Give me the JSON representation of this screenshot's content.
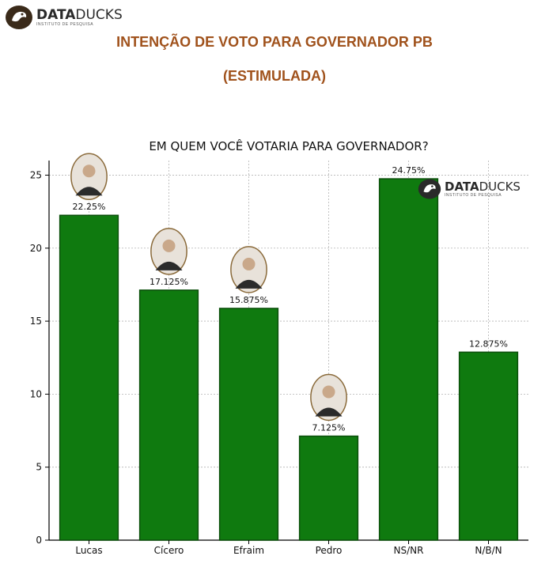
{
  "header": {
    "logo": {
      "name_bold": "DATA",
      "name_regular": "DUCKS",
      "subtitle": "INSTITUTO DE PESQUISA"
    },
    "title_line1": "INTENÇÃO DE VOTO PARA GOVERNADOR PB",
    "title_line2": "(ESTIMULADA)"
  },
  "watermark": {
    "name_bold": "DATA",
    "name_regular": "DUCKS",
    "subtitle": "INSTITUTO DE PESQUISA"
  },
  "colors": {
    "bar": "#0f7a0f",
    "bar_border": "#0b4f0b",
    "title": "#a0521c",
    "grid": "#b4b4b4"
  },
  "chart_data": {
    "type": "bar",
    "title": "EM QUEM VOCÊ VOTARIA PARA GOVERNADOR?",
    "xlabel": "",
    "ylabel": "",
    "categories": [
      "Lucas",
      "Cícero",
      "Efraim",
      "Pedro",
      "NS/NR",
      "N/B/N"
    ],
    "values": [
      22.25,
      17.125,
      15.875,
      7.125,
      24.75,
      12.875
    ],
    "data_labels": [
      "22.25%",
      "17.125%",
      "15.875%",
      "7.125%",
      "24.75%",
      "12.875%"
    ],
    "candidate_photos": [
      true,
      true,
      true,
      true,
      false,
      false
    ],
    "ylim": [
      0,
      26
    ],
    "yticks": [
      0,
      5,
      10,
      15,
      20,
      25
    ],
    "grid": true
  }
}
